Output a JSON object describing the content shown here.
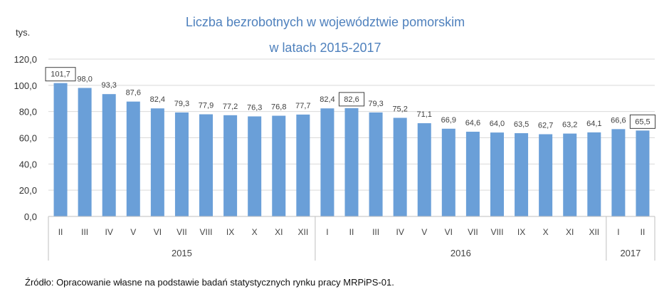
{
  "chart_data": {
    "type": "bar",
    "title": "Liczba bezrobotnych w województwie pomorskim",
    "subtitle": "w latach 2015-2017",
    "ylabel": "tys.",
    "ylim": [
      0,
      120
    ],
    "yticks": [
      "0,0",
      "20,0",
      "40,0",
      "60,0",
      "80,0",
      "100,0",
      "120,0"
    ],
    "grid": true,
    "bar_color": "#6a9fd8",
    "categories": [
      "II",
      "III",
      "IV",
      "V",
      "VI",
      "VII",
      "VIII",
      "IX",
      "X",
      "XI",
      "XII",
      "I",
      "II",
      "III",
      "IV",
      "V",
      "VI",
      "VII",
      "VIII",
      "IX",
      "X",
      "XI",
      "XII",
      "I",
      "II"
    ],
    "values": [
      101.7,
      98.0,
      93.3,
      87.6,
      82.4,
      79.3,
      77.9,
      77.2,
      76.3,
      76.8,
      77.7,
      82.4,
      82.6,
      79.3,
      75.2,
      71.1,
      66.9,
      64.6,
      64.0,
      63.5,
      62.7,
      63.2,
      64.1,
      66.6,
      65.5
    ],
    "value_labels": [
      "101,7",
      "98,0",
      "93,3",
      "87,6",
      "82,4",
      "79,3",
      "77,9",
      "77,2",
      "76,3",
      "76,8",
      "77,7",
      "82,4",
      "82,6",
      "79,3",
      "75,2",
      "71,1",
      "66,9",
      "64,6",
      "64,0",
      "63,5",
      "62,7",
      "63,2",
      "64,1",
      "66,6",
      "65,5"
    ],
    "boxed_labels": [
      0,
      12,
      24
    ],
    "groups": [
      {
        "label": "2015",
        "start": 0,
        "end": 10
      },
      {
        "label": "2016",
        "start": 11,
        "end": 22
      },
      {
        "label": "2017",
        "start": 23,
        "end": 24
      }
    ]
  },
  "source": "Źródło: Opracowanie własne na podstawie badań statystycznych rynku pracy MRPiPS-01."
}
